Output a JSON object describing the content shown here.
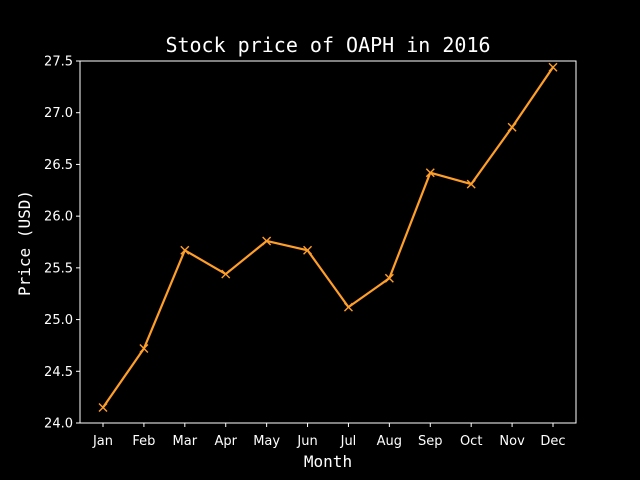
{
  "chart_data": {
    "type": "line",
    "title": "Stock price of OAPH in 2016",
    "xlabel": "Month",
    "ylabel": "Price (USD)",
    "categories": [
      "Jan",
      "Feb",
      "Mar",
      "Apr",
      "May",
      "Jun",
      "Jul",
      "Aug",
      "Sep",
      "Oct",
      "Nov",
      "Dec"
    ],
    "series": [
      {
        "values": [
          24.15,
          24.72,
          25.67,
          25.44,
          25.76,
          25.67,
          25.12,
          25.4,
          26.42,
          26.31,
          26.86,
          27.44
        ],
        "color": "#ff9f2a",
        "marker": "x"
      }
    ],
    "ylim": [
      24.0,
      27.5
    ],
    "yticks": [
      "24.0",
      "24.5",
      "25.0",
      "25.5",
      "26.0",
      "26.5",
      "27.0",
      "27.5"
    ],
    "grid": false,
    "legend": false,
    "background": "#000000",
    "foreground": "#ffffff"
  }
}
